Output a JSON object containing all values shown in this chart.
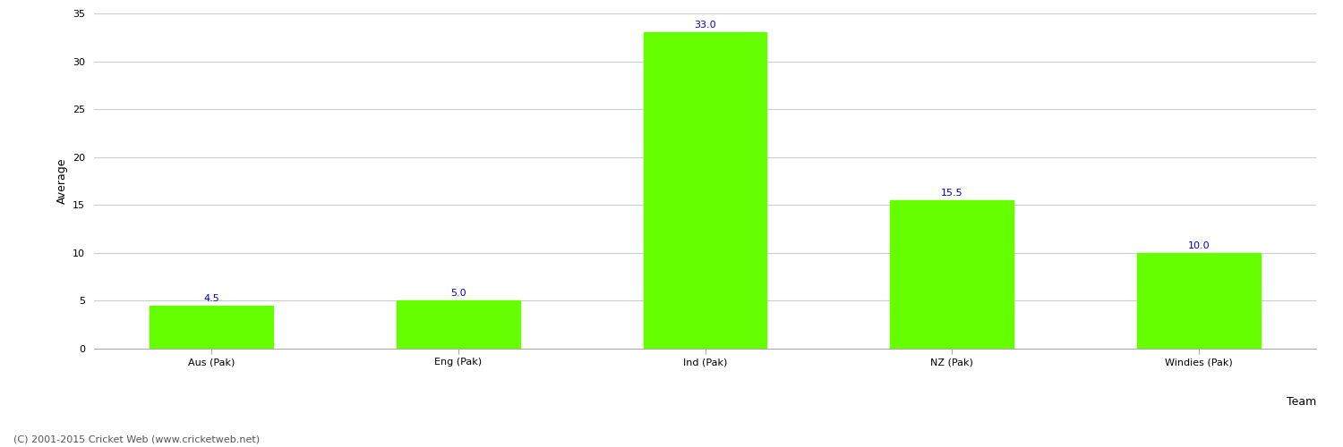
{
  "categories": [
    "Aus (Pak)",
    "Eng (Pak)",
    "Ind (Pak)",
    "NZ (Pak)",
    "Windies (Pak)"
  ],
  "values": [
    4.5,
    5.0,
    33.0,
    15.5,
    10.0
  ],
  "bar_color": "#66ff00",
  "bar_edge_color": "#66ff00",
  "xlabel": "Team",
  "ylabel": "Average",
  "ylim": [
    0,
    35
  ],
  "yticks": [
    0,
    5,
    10,
    15,
    20,
    25,
    30,
    35
  ],
  "label_color": "#0000cc",
  "label_fontsize": 8,
  "axis_label_fontsize": 9,
  "tick_fontsize": 8,
  "background_color": "#ffffff",
  "grid_color": "#cccccc",
  "footer_text": "(C) 2001-2015 Cricket Web (www.cricketweb.net)",
  "footer_fontsize": 8,
  "footer_color": "#555555"
}
